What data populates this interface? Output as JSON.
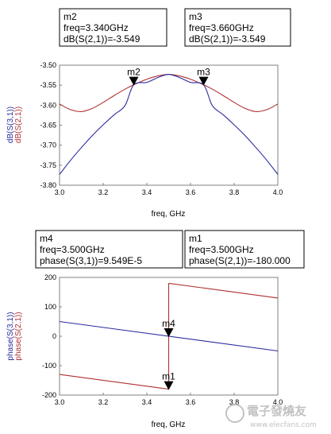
{
  "colors": {
    "red": "#b03030",
    "blue": "#2a2aa0",
    "frame": "#808080"
  },
  "chart_data": [
    {
      "type": "line",
      "xlabel": "freq, GHz",
      "ylabel_series": [
        "dB(S(3,1))",
        "dB(S(2,1))"
      ],
      "xlim": [
        3.0,
        4.0
      ],
      "ylim": [
        -3.8,
        -3.5
      ],
      "xticks": [
        "3.0",
        "3.2",
        "3.4",
        "3.6",
        "3.8",
        "4.0"
      ],
      "yticks": [
        "-3.50",
        "-3.55",
        "-3.60",
        "-3.65",
        "-3.70",
        "-3.75",
        "-3.80"
      ],
      "series": [
        {
          "name": "dB(S(2,1))",
          "color": "#b03030",
          "x": [
            3.0,
            3.05,
            3.1,
            3.15,
            3.2,
            3.25,
            3.3,
            3.34,
            3.4,
            3.45,
            3.5,
            3.55,
            3.6,
            3.66,
            3.7,
            3.75,
            3.8,
            3.85,
            3.9,
            3.95,
            4.0
          ],
          "y": [
            -3.597,
            -3.611,
            -3.616,
            -3.608,
            -3.593,
            -3.576,
            -3.56,
            -3.549,
            -3.535,
            -3.527,
            -3.523,
            -3.527,
            -3.535,
            -3.549,
            -3.56,
            -3.576,
            -3.593,
            -3.608,
            -3.616,
            -3.611,
            -3.597
          ]
        },
        {
          "name": "dB(S(3,1))",
          "color": "#2a2aa0",
          "x": [
            3.0,
            3.05,
            3.1,
            3.15,
            3.2,
            3.25,
            3.3,
            3.34,
            3.4,
            3.45,
            3.5,
            3.55,
            3.6,
            3.66,
            3.7,
            3.75,
            3.8,
            3.85,
            3.9,
            3.95,
            4.0
          ],
          "y": [
            -3.773,
            -3.738,
            -3.706,
            -3.676,
            -3.649,
            -3.624,
            -3.601,
            -3.549,
            -3.543,
            -3.531,
            -3.523,
            -3.531,
            -3.543,
            -3.549,
            -3.601,
            -3.624,
            -3.649,
            -3.676,
            -3.706,
            -3.738,
            -3.773
          ]
        }
      ],
      "markers": [
        {
          "name": "m2",
          "x": 3.34,
          "y": -3.549,
          "lines": [
            "m2",
            "freq=3.340GHz",
            "dB(S(2,1))=-3.549"
          ]
        },
        {
          "name": "m3",
          "x": 3.66,
          "y": -3.549,
          "lines": [
            "m3",
            "freq=3.660GHz",
            "dB(S(2,1))=-3.549"
          ]
        }
      ]
    },
    {
      "type": "line",
      "xlabel": "freq, GHz",
      "ylabel_series": [
        "phase(S(3,1))",
        "phase(S(2,1))"
      ],
      "xlim": [
        3.0,
        4.0
      ],
      "ylim": [
        -200,
        200
      ],
      "xticks": [
        "3.0",
        "3.2",
        "3.4",
        "3.6",
        "3.8",
        "4.0"
      ],
      "yticks": [
        "200",
        "100",
        "0",
        "-100",
        "-200"
      ],
      "series": [
        {
          "name": "phase(S(2,1))",
          "color": "#b03030",
          "segments": [
            {
              "x": [
                3.0,
                3.5
              ],
              "y": [
                -130,
                -180
              ]
            },
            {
              "x": [
                3.5,
                3.5
              ],
              "y": [
                -180,
                180
              ]
            },
            {
              "x": [
                3.5,
                4.0
              ],
              "y": [
                180,
                130
              ]
            }
          ]
        },
        {
          "name": "phase(S(3,1))",
          "color": "#2a2aa0",
          "segments": [
            {
              "x": [
                3.0,
                4.0
              ],
              "y": [
                50,
                -50
              ]
            }
          ]
        }
      ],
      "markers": [
        {
          "name": "m4",
          "x": 3.5,
          "y": 0,
          "lines": [
            "m4",
            "freq=3.500GHz",
            "phase(S(3,1))=9.549E-5"
          ]
        },
        {
          "name": "m1",
          "x": 3.5,
          "y": -180,
          "lines": [
            "m1",
            "freq=3.500GHz",
            "phase(S(2,1))=-180.000"
          ]
        }
      ]
    }
  ],
  "watermark": {
    "main": "電子發燒友",
    "sub": "www.elecfans.com"
  }
}
